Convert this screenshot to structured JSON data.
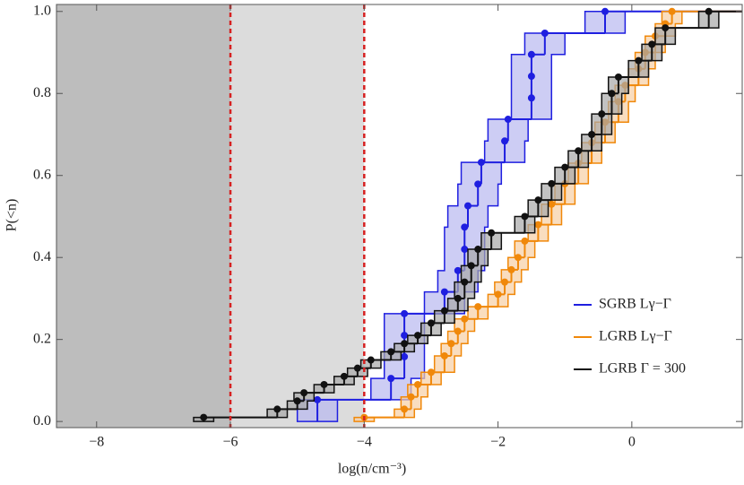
{
  "chart_data": {
    "type": "step",
    "xlabel": "log(n/cm⁻³)",
    "ylabel": "P(<n)",
    "xlim": [
      -8.6,
      1.65
    ],
    "ylim": [
      -0.015,
      1.017
    ],
    "xticks": [
      {
        "value": -8,
        "label": "−8"
      },
      {
        "value": -6,
        "label": "−6"
      },
      {
        "value": -4,
        "label": "−4"
      },
      {
        "value": -2,
        "label": "−2"
      },
      {
        "value": 0,
        "label": "0"
      }
    ],
    "yticks": [
      {
        "value": 0,
        "label": "0.0"
      },
      0.2,
      0.4,
      0.6,
      0.8,
      {
        "value": 1,
        "label": "1.0"
      }
    ],
    "vlines": [
      -6,
      -4
    ],
    "vline_color": "#d62020",
    "shade_colors": [
      "#bdbdbd",
      "#dcdcdc"
    ],
    "legend": "lower right",
    "series": [
      {
        "name": "SGRB Lγ−Γ",
        "color": "#1f1fe0",
        "band_fill": "#b8b8f0",
        "band_width": 0.3,
        "x": [
          -4.7,
          -3.6,
          -3.4,
          -3.4,
          -3.4,
          -2.8,
          -2.6,
          -2.5,
          -2.5,
          -2.45,
          -2.3,
          -2.25,
          -1.9,
          -1.85,
          -1.5,
          -1.5,
          -1.5,
          -1.3,
          -0.4
        ],
        "values": [
          0.053,
          0.105,
          0.158,
          0.21,
          0.263,
          0.316,
          0.368,
          0.42,
          0.474,
          0.526,
          0.579,
          0.632,
          0.684,
          0.737,
          0.789,
          0.842,
          0.895,
          0.947,
          1.0
        ]
      },
      {
        "name": "LGRB Lγ−Γ",
        "color": "#f0880a",
        "band_fill": "#f6cfa4",
        "band_width": 0.15,
        "x": [
          -4.0,
          -3.4,
          -3.3,
          -3.2,
          -3.0,
          -2.8,
          -2.7,
          -2.6,
          -2.5,
          -2.3,
          -2.0,
          -1.9,
          -1.8,
          -1.7,
          -1.6,
          -1.4,
          -1.2,
          -1.0,
          -0.8,
          -0.6,
          -0.4,
          -0.2,
          -0.1,
          0.1,
          0.2,
          0.35,
          0.5,
          0.6
        ],
        "values": [
          0.01,
          0.03,
          0.06,
          0.09,
          0.12,
          0.16,
          0.19,
          0.22,
          0.25,
          0.28,
          0.31,
          0.34,
          0.37,
          0.4,
          0.44,
          0.48,
          0.53,
          0.58,
          0.63,
          0.68,
          0.73,
          0.78,
          0.82,
          0.86,
          0.9,
          0.94,
          0.97,
          1.0
        ]
      },
      {
        "name": "LGRB Γ = 300",
        "color": "#111111",
        "band_fill": "#a8a8a8",
        "band_width": 0.15,
        "x": [
          -6.4,
          -5.3,
          -5.0,
          -4.9,
          -4.6,
          -4.3,
          -4.1,
          -3.9,
          -3.6,
          -3.4,
          -3.2,
          -3.0,
          -2.8,
          -2.6,
          -2.5,
          -2.4,
          -2.3,
          -2.1,
          -1.6,
          -1.4,
          -1.2,
          -1.0,
          -0.8,
          -0.6,
          -0.45,
          -0.3,
          -0.2,
          0.1,
          0.3,
          0.5,
          1.15
        ],
        "values": [
          0.01,
          0.03,
          0.05,
          0.07,
          0.09,
          0.11,
          0.13,
          0.15,
          0.17,
          0.19,
          0.21,
          0.24,
          0.27,
          0.3,
          0.34,
          0.38,
          0.42,
          0.46,
          0.5,
          0.54,
          0.58,
          0.62,
          0.66,
          0.7,
          0.75,
          0.8,
          0.84,
          0.88,
          0.92,
          0.96,
          1.0
        ]
      }
    ]
  }
}
